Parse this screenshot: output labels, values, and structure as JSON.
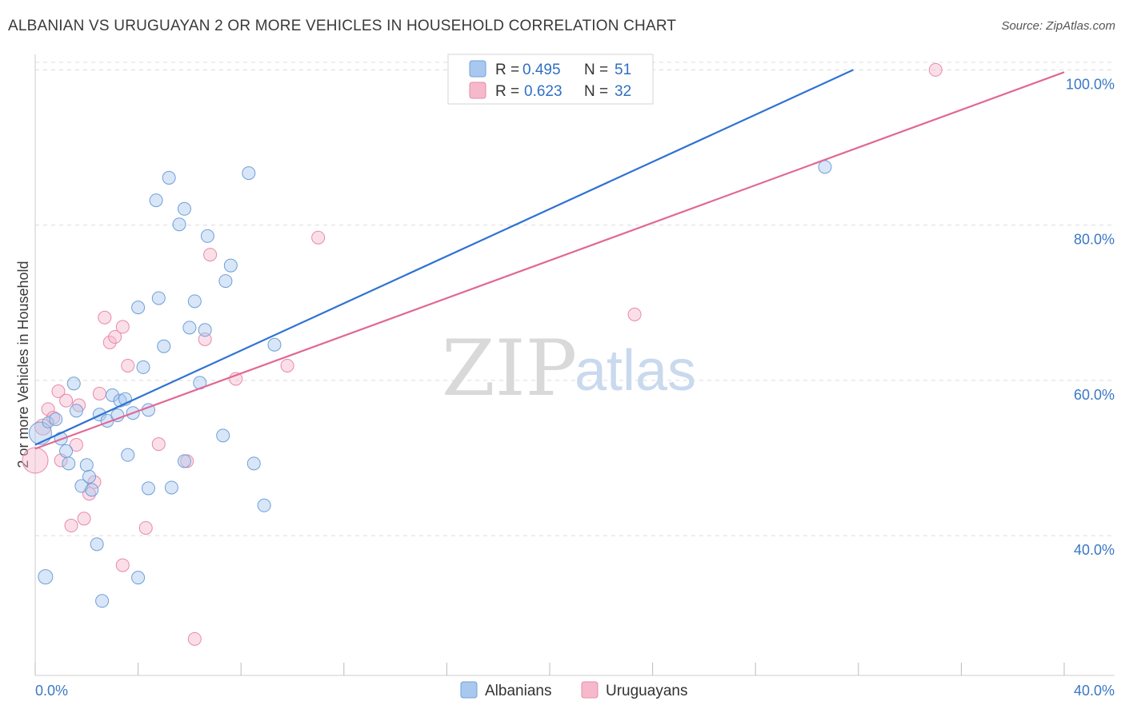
{
  "title": "ALBANIAN VS URUGUAYAN 2 OR MORE VEHICLES IN HOUSEHOLD CORRELATION CHART",
  "source": "Source: ZipAtlas.com",
  "watermark": {
    "zip": "ZIP",
    "atlas": "atlas"
  },
  "colors": {
    "albanian_fill": "#a9c8f0",
    "albanian_stroke": "#6f9fd8",
    "albanian_line": "#2e72d2",
    "uruguayan_fill": "#f6b9cc",
    "uruguayan_stroke": "#e88aa8",
    "uruguayan_line": "#e06896",
    "grid": "#dcdcdc",
    "axis_text": "#3a78c4"
  },
  "legend": {
    "rows": [
      {
        "r_label": "R = ",
        "r_value": "0.495",
        "n_label": "N = ",
        "n_value": "51"
      },
      {
        "r_label": "R = ",
        "r_value": "0.623",
        "n_label": "N = ",
        "n_value": "32"
      }
    ]
  },
  "bottom_legend": [
    "Albanians",
    "Uruguayans"
  ],
  "chart_data": {
    "type": "scatter",
    "title": "ALBANIAN VS URUGUAYAN 2 OR MORE VEHICLES IN HOUSEHOLD CORRELATION CHART",
    "xlabel": "",
    "ylabel": "2 or more Vehicles in Household",
    "xlim": [
      0,
      40
    ],
    "ylim": [
      22,
      102
    ],
    "x_tick_labels": [
      "0.0%",
      "40.0%"
    ],
    "y_ticks": [
      40,
      60,
      80,
      100
    ],
    "y_tick_labels": [
      "40.0%",
      "60.0%",
      "80.0%",
      "100.0%"
    ],
    "grid": true,
    "legend_position": "top-center",
    "series": [
      {
        "name": "Albanians",
        "r": 0.495,
        "n": 51,
        "trend": {
          "x0": 0,
          "y0": 51.7,
          "x1": 31.8,
          "y1": 100
        },
        "points": [
          [
            0.2,
            53.2,
            14
          ],
          [
            0.4,
            34.7,
            9
          ],
          [
            0.5,
            54.6,
            7
          ],
          [
            0.8,
            55.0,
            8
          ],
          [
            1.0,
            52.5,
            8
          ],
          [
            1.2,
            50.9,
            8
          ],
          [
            1.3,
            49.3,
            8
          ],
          [
            1.5,
            59.6,
            8
          ],
          [
            1.6,
            56.1,
            8
          ],
          [
            1.8,
            46.4,
            8
          ],
          [
            2.0,
            49.1,
            8
          ],
          [
            2.1,
            47.6,
            8
          ],
          [
            2.2,
            45.9,
            8
          ],
          [
            2.4,
            38.9,
            8
          ],
          [
            2.5,
            55.6,
            8
          ],
          [
            2.6,
            31.6,
            8
          ],
          [
            2.8,
            54.8,
            8
          ],
          [
            3.0,
            58.1,
            8
          ],
          [
            3.2,
            55.5,
            8
          ],
          [
            3.3,
            57.4,
            8
          ],
          [
            3.5,
            57.6,
            8
          ],
          [
            3.6,
            50.4,
            8
          ],
          [
            3.8,
            55.8,
            8
          ],
          [
            4.0,
            34.6,
            8
          ],
          [
            4.0,
            69.4,
            8
          ],
          [
            4.2,
            61.7,
            8
          ],
          [
            4.4,
            46.1,
            8
          ],
          [
            4.4,
            56.2,
            8
          ],
          [
            4.7,
            83.2,
            8
          ],
          [
            4.8,
            70.6,
            8
          ],
          [
            5.0,
            64.4,
            8
          ],
          [
            5.2,
            86.1,
            8
          ],
          [
            5.3,
            46.2,
            8
          ],
          [
            5.6,
            80.1,
            8
          ],
          [
            5.8,
            82.1,
            8
          ],
          [
            5.8,
            49.6,
            8
          ],
          [
            6.0,
            66.8,
            8
          ],
          [
            6.2,
            70.2,
            8
          ],
          [
            6.4,
            59.7,
            8
          ],
          [
            6.6,
            66.5,
            8
          ],
          [
            6.7,
            78.6,
            8
          ],
          [
            7.3,
            52.9,
            8
          ],
          [
            7.4,
            72.8,
            8
          ],
          [
            7.6,
            74.8,
            8
          ],
          [
            8.3,
            86.7,
            8
          ],
          [
            8.5,
            49.3,
            8
          ],
          [
            8.9,
            43.9,
            8
          ],
          [
            9.3,
            64.6,
            8
          ],
          [
            30.7,
            87.5,
            8
          ]
        ]
      },
      {
        "name": "Uruguayans",
        "r": 0.623,
        "n": 32,
        "trend": {
          "x0": 0,
          "y0": 51.2,
          "x1": 40,
          "y1": 99.7
        },
        "points": [
          [
            0.0,
            49.7,
            16
          ],
          [
            0.3,
            54.0,
            10
          ],
          [
            0.5,
            56.3,
            8
          ],
          [
            0.7,
            55.2,
            8
          ],
          [
            0.9,
            58.6,
            8
          ],
          [
            1.0,
            49.7,
            8
          ],
          [
            1.2,
            57.4,
            8
          ],
          [
            1.4,
            41.3,
            8
          ],
          [
            1.6,
            51.7,
            8
          ],
          [
            1.7,
            56.8,
            8
          ],
          [
            1.9,
            42.2,
            8
          ],
          [
            2.1,
            45.4,
            8
          ],
          [
            2.3,
            46.9,
            8
          ],
          [
            2.5,
            58.3,
            8
          ],
          [
            2.7,
            68.1,
            8
          ],
          [
            2.9,
            64.9,
            8
          ],
          [
            3.1,
            65.6,
            8
          ],
          [
            3.4,
            36.2,
            8
          ],
          [
            3.4,
            66.9,
            8
          ],
          [
            3.6,
            61.9,
            8
          ],
          [
            4.3,
            41.0,
            8
          ],
          [
            4.8,
            51.8,
            8
          ],
          [
            5.9,
            49.6,
            8
          ],
          [
            6.2,
            26.7,
            8
          ],
          [
            6.6,
            65.3,
            8
          ],
          [
            6.8,
            76.2,
            8
          ],
          [
            7.8,
            60.2,
            8
          ],
          [
            9.8,
            61.9,
            8
          ],
          [
            11.0,
            78.4,
            8
          ],
          [
            23.3,
            68.5,
            8
          ],
          [
            35.0,
            100.0,
            8
          ]
        ]
      }
    ]
  }
}
